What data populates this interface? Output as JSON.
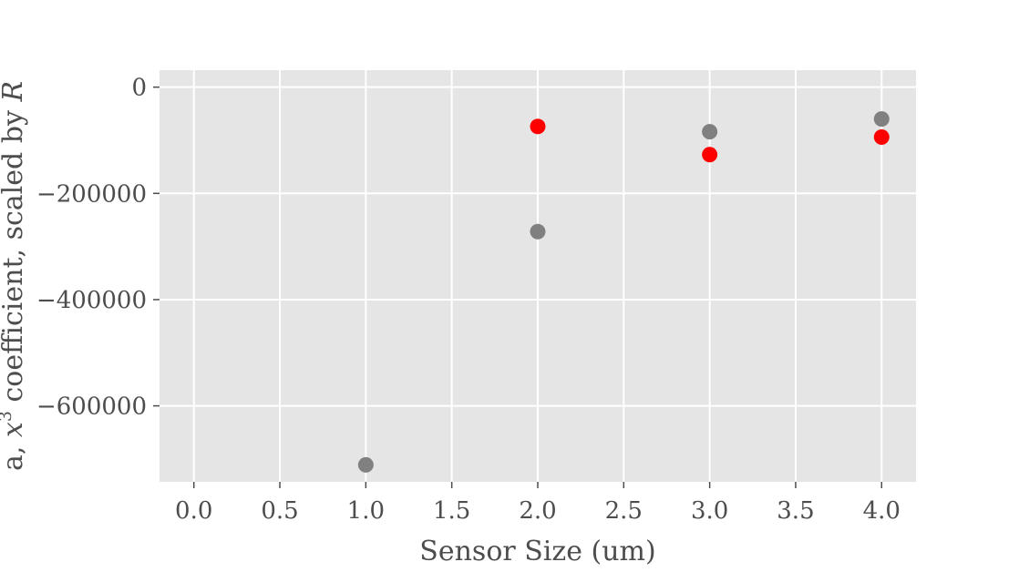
{
  "chart_data": {
    "type": "scatter",
    "xlabel": "Sensor Size (um)",
    "ylabel_parts": {
      "prefix": "a, ",
      "var": "x",
      "exp": "3",
      "middle": " coefficient, scaled by ",
      "scale_var": "R"
    },
    "xlim": [
      -0.2,
      4.2
    ],
    "ylim": [
      -743000,
      32000
    ],
    "xticks": [
      0.0,
      0.5,
      1.0,
      1.5,
      2.0,
      2.5,
      3.0,
      3.5,
      4.0
    ],
    "xtick_labels": [
      "0.0",
      "0.5",
      "1.0",
      "1.5",
      "2.0",
      "2.5",
      "3.0",
      "3.5",
      "4.0"
    ],
    "yticks": [
      0,
      -200000,
      -400000,
      -600000
    ],
    "ytick_labels": [
      "0",
      "−200000",
      "−400000",
      "−600000"
    ],
    "grid": true,
    "background": "#e5e5e5",
    "series": [
      {
        "color": "#808080",
        "x": [
          1.0,
          2.0,
          3.0,
          4.0
        ],
        "y": [
          -711000,
          -272000,
          -84000,
          -60000
        ]
      },
      {
        "color": "#ff0000",
        "x": [
          2.0,
          3.0,
          4.0
        ],
        "y": [
          -74000,
          -127000,
          -94000
        ]
      }
    ]
  }
}
